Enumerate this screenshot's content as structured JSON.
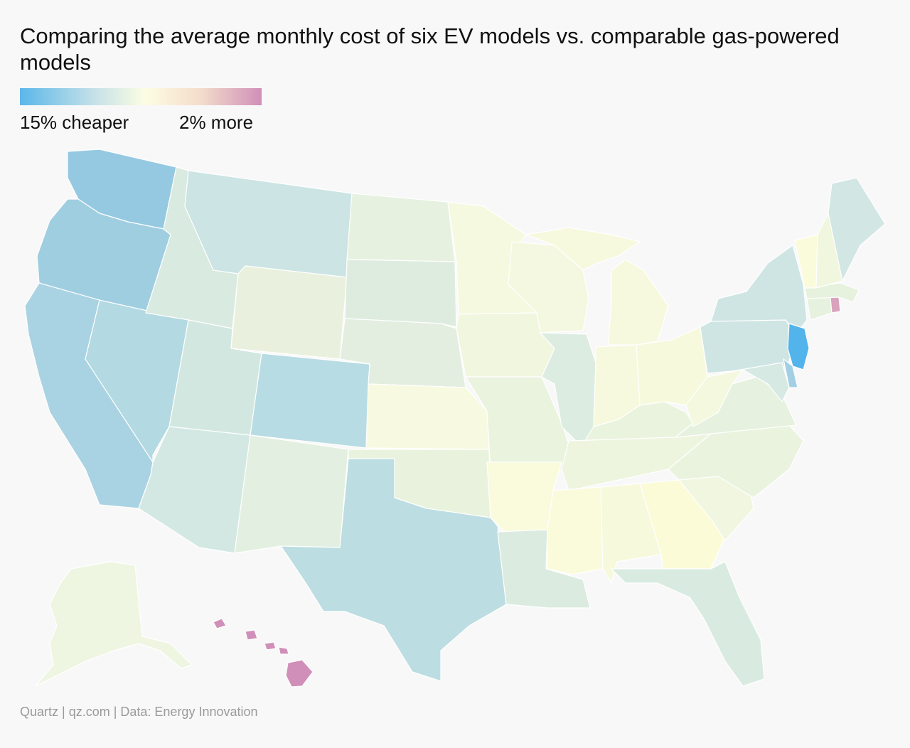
{
  "title": "Comparing the average monthly cost of six EV models vs. comparable gas-powered models",
  "legend": {
    "min_label": "15% cheaper",
    "max_label": "2% more",
    "gradient_stops": [
      "#5bb7e9",
      "#c3e0e8",
      "#fdfde3",
      "#f3dccb",
      "#d08fb8"
    ]
  },
  "source": "Quartz | qz.com | Data: Energy Innovation",
  "colors": {
    "background": "#f8f8f8",
    "border": "#ffffff"
  },
  "states": [
    {
      "id": "WA",
      "color": "#95c9e1"
    },
    {
      "id": "OR",
      "color": "#9fcee1"
    },
    {
      "id": "CA",
      "color": "#a9d3e2"
    },
    {
      "id": "NV",
      "color": "#b3d9e2"
    },
    {
      "id": "ID",
      "color": "#d9eae1"
    },
    {
      "id": "MT",
      "color": "#cce4e3"
    },
    {
      "id": "WY",
      "color": "#e9f1de"
    },
    {
      "id": "UT",
      "color": "#d3e7e1"
    },
    {
      "id": "CO",
      "color": "#b8dce3"
    },
    {
      "id": "AZ",
      "color": "#d3e8e2"
    },
    {
      "id": "NM",
      "color": "#e3efe0"
    },
    {
      "id": "ND",
      "color": "#e6f1e0"
    },
    {
      "id": "SD",
      "color": "#deece0"
    },
    {
      "id": "NE",
      "color": "#e3eee0"
    },
    {
      "id": "KS",
      "color": "#f7fae0"
    },
    {
      "id": "OK",
      "color": "#e9f2dd"
    },
    {
      "id": "TX",
      "color": "#bcdde2"
    },
    {
      "id": "MN",
      "color": "#f5f9e0"
    },
    {
      "id": "IA",
      "color": "#f1f6df"
    },
    {
      "id": "MO",
      "color": "#eaf3de"
    },
    {
      "id": "AR",
      "color": "#fafbdc"
    },
    {
      "id": "LA",
      "color": "#dbebe0"
    },
    {
      "id": "WI",
      "color": "#f5f8e0"
    },
    {
      "id": "IL",
      "color": "#dcece1"
    },
    {
      "id": "MI",
      "color": "#f7f9df"
    },
    {
      "id": "IN",
      "color": "#f6f9dd"
    },
    {
      "id": "OH",
      "color": "#f7f9dd"
    },
    {
      "id": "KY",
      "color": "#eaf3de"
    },
    {
      "id": "TN",
      "color": "#edf5df"
    },
    {
      "id": "MS",
      "color": "#fafbdb"
    },
    {
      "id": "AL",
      "color": "#f7f9dd"
    },
    {
      "id": "GA",
      "color": "#fbfbd7"
    },
    {
      "id": "FL",
      "color": "#d9ebe1"
    },
    {
      "id": "SC",
      "color": "#f0f6df"
    },
    {
      "id": "NC",
      "color": "#eaf3de"
    },
    {
      "id": "VA",
      "color": "#e6f1df"
    },
    {
      "id": "WV",
      "color": "#f4f8de"
    },
    {
      "id": "PA",
      "color": "#cfe5e3"
    },
    {
      "id": "NY",
      "color": "#cfe5e4"
    },
    {
      "id": "VT",
      "color": "#fafbdb"
    },
    {
      "id": "NH",
      "color": "#f1f6df"
    },
    {
      "id": "ME",
      "color": "#d2e6e3"
    },
    {
      "id": "MA",
      "color": "#e6f1de"
    },
    {
      "id": "CT",
      "color": "#e6f1de"
    },
    {
      "id": "RI",
      "color": "#d9a2bd"
    },
    {
      "id": "NJ",
      "color": "#52b4ea"
    },
    {
      "id": "DE",
      "color": "#a2cfe4"
    },
    {
      "id": "MD",
      "color": "#d6e9e2"
    },
    {
      "id": "AK",
      "color": "#eef6e1"
    },
    {
      "id": "HI",
      "color": "#d08fb8"
    }
  ]
}
